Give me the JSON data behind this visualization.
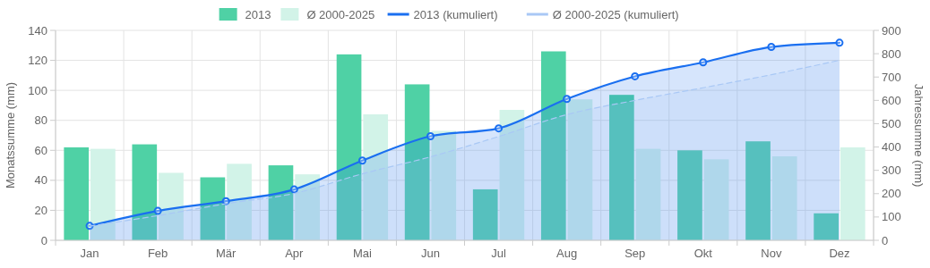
{
  "chart_data": {
    "type": "bar",
    "categories": [
      "Jan",
      "Feb",
      "Mär",
      "Apr",
      "Mai",
      "Jun",
      "Jul",
      "Aug",
      "Sep",
      "Okt",
      "Nov",
      "Dez"
    ],
    "series": [
      {
        "name": "2013",
        "color": "#4fd1a5",
        "values": [
          62,
          64,
          42,
          50,
          124,
          104,
          34,
          126,
          97,
          60,
          66,
          18
        ]
      },
      {
        "name": "Ø 2000-2025",
        "color": "#d2f3e8",
        "values": [
          61,
          45,
          51,
          44,
          84,
          73,
          87,
          94,
          61,
          54,
          56,
          62
        ]
      },
      {
        "name": "2013 (kumuliert)",
        "type": "area",
        "axis": "y2",
        "color": "#1a6ff0",
        "marker": "circle",
        "line_style": "solid",
        "values": [
          62,
          126,
          168,
          218,
          342,
          446,
          480,
          606,
          703,
          763,
          829,
          847
        ]
      },
      {
        "name": "Ø 2000-2025 (kumuliert)",
        "type": "area",
        "axis": "y2",
        "color": "#a9c8f5",
        "marker": "none",
        "line_style": "dashed",
        "values": [
          61,
          106,
          157,
          201,
          285,
          358,
          445,
          539,
          600,
          654,
          710,
          772
        ]
      }
    ],
    "ylabel": "Monatssumme (mm)",
    "y2label": "Jahressumme (mm)",
    "ylim": [
      0,
      140
    ],
    "yticks": [
      0,
      20,
      40,
      60,
      80,
      100,
      120,
      140
    ],
    "y2lim": [
      0,
      900
    ],
    "y2ticks": [
      0,
      100,
      200,
      300,
      400,
      500,
      600,
      700,
      800,
      900
    ],
    "grid": true,
    "legend": "top"
  }
}
